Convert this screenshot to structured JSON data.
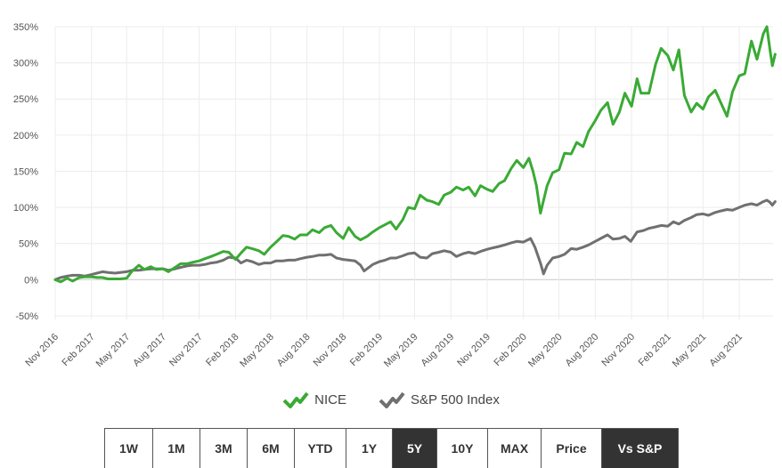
{
  "chart_data": {
    "type": "line",
    "ylim": [
      -55,
      350
    ],
    "y_ticks": [
      {
        "value": 350,
        "label": "350%"
      },
      {
        "value": 300,
        "label": "300%"
      },
      {
        "value": 250,
        "label": "250%"
      },
      {
        "value": 200,
        "label": "200%"
      },
      {
        "value": 150,
        "label": "150%"
      },
      {
        "value": 100,
        "label": "100%"
      },
      {
        "value": 50,
        "label": "50%"
      },
      {
        "value": 0,
        "label": "0%"
      },
      {
        "value": -50,
        "label": "-50%"
      }
    ],
    "x_range": [
      "2016-11-01",
      "2021-10-31"
    ],
    "x_ticks": [
      {
        "date": "2016-11-01",
        "label": "Nov 2016"
      },
      {
        "date": "2017-02-01",
        "label": "Feb 2017"
      },
      {
        "date": "2017-05-01",
        "label": "May 2017"
      },
      {
        "date": "2017-08-01",
        "label": "Aug 2017"
      },
      {
        "date": "2017-11-01",
        "label": "Nov 2017"
      },
      {
        "date": "2018-02-01",
        "label": "Feb 2018"
      },
      {
        "date": "2018-05-01",
        "label": "May 2018"
      },
      {
        "date": "2018-08-01",
        "label": "Aug 2018"
      },
      {
        "date": "2018-11-01",
        "label": "Nov 2018"
      },
      {
        "date": "2019-02-01",
        "label": "Feb 2019"
      },
      {
        "date": "2019-05-01",
        "label": "May 2019"
      },
      {
        "date": "2019-08-01",
        "label": "Aug 2019"
      },
      {
        "date": "2019-11-01",
        "label": "Nov 2019"
      },
      {
        "date": "2020-02-01",
        "label": "Feb 2020"
      },
      {
        "date": "2020-05-01",
        "label": "May 2020"
      },
      {
        "date": "2020-08-01",
        "label": "Aug 2020"
      },
      {
        "date": "2020-11-01",
        "label": "Nov 2020"
      },
      {
        "date": "2021-02-01",
        "label": "Feb 2021"
      },
      {
        "date": "2021-05-01",
        "label": "May 2021"
      },
      {
        "date": "2021-08-01",
        "label": "Aug 2021"
      }
    ],
    "grid": true,
    "legend_position": "bottom-center",
    "series": [
      {
        "name": "NICE",
        "color": "#3aaa35",
        "points": [
          [
            "2016-11-01",
            0
          ],
          [
            "2016-11-15",
            -3
          ],
          [
            "2016-12-01",
            2
          ],
          [
            "2016-12-15",
            -2
          ],
          [
            "2017-01-01",
            3
          ],
          [
            "2017-01-15",
            4
          ],
          [
            "2017-02-01",
            4
          ],
          [
            "2017-02-15",
            3
          ],
          [
            "2017-03-01",
            3
          ],
          [
            "2017-03-15",
            1
          ],
          [
            "2017-04-01",
            1
          ],
          [
            "2017-04-15",
            1
          ],
          [
            "2017-05-01",
            2
          ],
          [
            "2017-05-15",
            12
          ],
          [
            "2017-06-01",
            20
          ],
          [
            "2017-06-15",
            14
          ],
          [
            "2017-07-01",
            18
          ],
          [
            "2017-07-15",
            14
          ],
          [
            "2017-08-01",
            15
          ],
          [
            "2017-08-15",
            11
          ],
          [
            "2017-09-01",
            17
          ],
          [
            "2017-09-15",
            22
          ],
          [
            "2017-10-01",
            22
          ],
          [
            "2017-10-15",
            24
          ],
          [
            "2017-11-01",
            26
          ],
          [
            "2017-11-15",
            29
          ],
          [
            "2017-12-01",
            32
          ],
          [
            "2017-12-15",
            35
          ],
          [
            "2018-01-01",
            39
          ],
          [
            "2018-01-15",
            38
          ],
          [
            "2018-02-01",
            28
          ],
          [
            "2018-02-15",
            37
          ],
          [
            "2018-03-01",
            45
          ],
          [
            "2018-03-15",
            43
          ],
          [
            "2018-04-01",
            40
          ],
          [
            "2018-04-15",
            35
          ],
          [
            "2018-05-01",
            45
          ],
          [
            "2018-05-15",
            52
          ],
          [
            "2018-06-01",
            61
          ],
          [
            "2018-06-15",
            60
          ],
          [
            "2018-07-01",
            56
          ],
          [
            "2018-07-15",
            62
          ],
          [
            "2018-08-01",
            62
          ],
          [
            "2018-08-15",
            69
          ],
          [
            "2018-09-01",
            65
          ],
          [
            "2018-09-15",
            72
          ],
          [
            "2018-10-01",
            75
          ],
          [
            "2018-10-15",
            65
          ],
          [
            "2018-11-01",
            57
          ],
          [
            "2018-11-15",
            72
          ],
          [
            "2018-12-01",
            60
          ],
          [
            "2018-12-15",
            55
          ],
          [
            "2019-01-01",
            60
          ],
          [
            "2019-01-15",
            66
          ],
          [
            "2019-02-01",
            72
          ],
          [
            "2019-02-15",
            76
          ],
          [
            "2019-03-01",
            80
          ],
          [
            "2019-03-15",
            70
          ],
          [
            "2019-04-01",
            83
          ],
          [
            "2019-04-15",
            100
          ],
          [
            "2019-05-01",
            98
          ],
          [
            "2019-05-15",
            117
          ],
          [
            "2019-06-01",
            110
          ],
          [
            "2019-06-15",
            108
          ],
          [
            "2019-07-01",
            104
          ],
          [
            "2019-07-15",
            117
          ],
          [
            "2019-08-01",
            121
          ],
          [
            "2019-08-15",
            128
          ],
          [
            "2019-09-01",
            124
          ],
          [
            "2019-09-15",
            128
          ],
          [
            "2019-10-01",
            116
          ],
          [
            "2019-10-15",
            130
          ],
          [
            "2019-11-01",
            125
          ],
          [
            "2019-11-15",
            122
          ],
          [
            "2019-12-01",
            133
          ],
          [
            "2019-12-15",
            137
          ],
          [
            "2020-01-01",
            154
          ],
          [
            "2020-01-15",
            165
          ],
          [
            "2020-02-01",
            155
          ],
          [
            "2020-02-15",
            168
          ],
          [
            "2020-02-25",
            150
          ],
          [
            "2020-03-05",
            130
          ],
          [
            "2020-03-15",
            92
          ],
          [
            "2020-04-01",
            130
          ],
          [
            "2020-04-15",
            148
          ],
          [
            "2020-05-01",
            152
          ],
          [
            "2020-05-15",
            175
          ],
          [
            "2020-06-01",
            174
          ],
          [
            "2020-06-15",
            190
          ],
          [
            "2020-07-01",
            184
          ],
          [
            "2020-07-15",
            205
          ],
          [
            "2020-08-01",
            220
          ],
          [
            "2020-08-15",
            234
          ],
          [
            "2020-09-01",
            245
          ],
          [
            "2020-09-15",
            215
          ],
          [
            "2020-10-01",
            232
          ],
          [
            "2020-10-15",
            258
          ],
          [
            "2020-11-01",
            240
          ],
          [
            "2020-11-15",
            278
          ],
          [
            "2020-11-25",
            258
          ],
          [
            "2020-12-15",
            258
          ],
          [
            "2021-01-01",
            298
          ],
          [
            "2021-01-15",
            320
          ],
          [
            "2021-02-01",
            310
          ],
          [
            "2021-02-15",
            290
          ],
          [
            "2021-03-01",
            318
          ],
          [
            "2021-03-15",
            255
          ],
          [
            "2021-04-01",
            232
          ],
          [
            "2021-04-15",
            244
          ],
          [
            "2021-05-01",
            236
          ],
          [
            "2021-05-15",
            253
          ],
          [
            "2021-06-01",
            262
          ],
          [
            "2021-06-15",
            245
          ],
          [
            "2021-07-01",
            226
          ],
          [
            "2021-07-15",
            260
          ],
          [
            "2021-08-01",
            282
          ],
          [
            "2021-08-15",
            285
          ],
          [
            "2021-09-01",
            330
          ],
          [
            "2021-09-15",
            305
          ],
          [
            "2021-10-01",
            340
          ],
          [
            "2021-10-10",
            350
          ],
          [
            "2021-10-18",
            318
          ],
          [
            "2021-10-24",
            296
          ],
          [
            "2021-10-31",
            312
          ]
        ]
      },
      {
        "name": "S&P 500 Index",
        "color": "#707070",
        "points": [
          [
            "2016-11-01",
            0
          ],
          [
            "2016-11-15",
            3
          ],
          [
            "2016-12-01",
            5
          ],
          [
            "2016-12-15",
            6
          ],
          [
            "2017-01-01",
            6
          ],
          [
            "2017-01-15",
            5
          ],
          [
            "2017-02-01",
            7
          ],
          [
            "2017-02-15",
            9
          ],
          [
            "2017-03-01",
            11
          ],
          [
            "2017-03-15",
            10
          ],
          [
            "2017-04-01",
            9
          ],
          [
            "2017-04-15",
            10
          ],
          [
            "2017-05-01",
            11
          ],
          [
            "2017-05-15",
            13
          ],
          [
            "2017-06-01",
            13
          ],
          [
            "2017-06-15",
            14
          ],
          [
            "2017-07-01",
            15
          ],
          [
            "2017-07-15",
            15
          ],
          [
            "2017-08-01",
            15
          ],
          [
            "2017-08-15",
            13
          ],
          [
            "2017-09-01",
            15
          ],
          [
            "2017-09-15",
            17
          ],
          [
            "2017-10-01",
            19
          ],
          [
            "2017-10-15",
            20
          ],
          [
            "2017-11-01",
            20
          ],
          [
            "2017-11-15",
            21
          ],
          [
            "2017-12-01",
            23
          ],
          [
            "2017-12-15",
            24
          ],
          [
            "2018-01-01",
            27
          ],
          [
            "2018-01-15",
            31
          ],
          [
            "2018-02-01",
            30
          ],
          [
            "2018-02-15",
            23
          ],
          [
            "2018-03-01",
            27
          ],
          [
            "2018-03-15",
            25
          ],
          [
            "2018-04-01",
            21
          ],
          [
            "2018-04-15",
            23
          ],
          [
            "2018-05-01",
            23
          ],
          [
            "2018-05-15",
            26
          ],
          [
            "2018-06-01",
            26
          ],
          [
            "2018-06-15",
            27
          ],
          [
            "2018-07-01",
            27
          ],
          [
            "2018-07-15",
            29
          ],
          [
            "2018-08-01",
            31
          ],
          [
            "2018-08-15",
            32
          ],
          [
            "2018-09-01",
            34
          ],
          [
            "2018-09-15",
            34
          ],
          [
            "2018-10-01",
            35
          ],
          [
            "2018-10-15",
            30
          ],
          [
            "2018-11-01",
            28
          ],
          [
            "2018-11-15",
            27
          ],
          [
            "2018-12-01",
            26
          ],
          [
            "2018-12-15",
            20
          ],
          [
            "2018-12-24",
            12
          ],
          [
            "2019-01-15",
            21
          ],
          [
            "2019-02-01",
            25
          ],
          [
            "2019-02-15",
            27
          ],
          [
            "2019-03-01",
            30
          ],
          [
            "2019-03-15",
            30
          ],
          [
            "2019-04-01",
            33
          ],
          [
            "2019-04-15",
            36
          ],
          [
            "2019-05-01",
            37
          ],
          [
            "2019-05-15",
            31
          ],
          [
            "2019-06-01",
            30
          ],
          [
            "2019-06-15",
            36
          ],
          [
            "2019-07-01",
            38
          ],
          [
            "2019-07-15",
            40
          ],
          [
            "2019-08-01",
            38
          ],
          [
            "2019-08-15",
            32
          ],
          [
            "2019-09-01",
            36
          ],
          [
            "2019-09-15",
            38
          ],
          [
            "2019-10-01",
            36
          ],
          [
            "2019-10-15",
            39
          ],
          [
            "2019-11-01",
            42
          ],
          [
            "2019-11-15",
            44
          ],
          [
            "2019-12-01",
            46
          ],
          [
            "2019-12-15",
            48
          ],
          [
            "2020-01-01",
            51
          ],
          [
            "2020-01-15",
            53
          ],
          [
            "2020-02-01",
            52
          ],
          [
            "2020-02-19",
            57
          ],
          [
            "2020-03-01",
            45
          ],
          [
            "2020-03-15",
            23
          ],
          [
            "2020-03-23",
            8
          ],
          [
            "2020-04-01",
            20
          ],
          [
            "2020-04-15",
            30
          ],
          [
            "2020-05-01",
            32
          ],
          [
            "2020-05-15",
            35
          ],
          [
            "2020-06-01",
            43
          ],
          [
            "2020-06-15",
            42
          ],
          [
            "2020-07-01",
            45
          ],
          [
            "2020-07-15",
            48
          ],
          [
            "2020-08-01",
            53
          ],
          [
            "2020-08-15",
            57
          ],
          [
            "2020-09-01",
            62
          ],
          [
            "2020-09-15",
            56
          ],
          [
            "2020-10-01",
            57
          ],
          [
            "2020-10-15",
            60
          ],
          [
            "2020-10-30",
            53
          ],
          [
            "2020-11-15",
            66
          ],
          [
            "2020-12-01",
            68
          ],
          [
            "2020-12-15",
            71
          ],
          [
            "2021-01-01",
            73
          ],
          [
            "2021-01-15",
            75
          ],
          [
            "2021-02-01",
            74
          ],
          [
            "2021-02-15",
            80
          ],
          [
            "2021-03-01",
            77
          ],
          [
            "2021-03-15",
            82
          ],
          [
            "2021-04-01",
            86
          ],
          [
            "2021-04-15",
            90
          ],
          [
            "2021-05-01",
            91
          ],
          [
            "2021-05-15",
            89
          ],
          [
            "2021-06-01",
            93
          ],
          [
            "2021-06-15",
            95
          ],
          [
            "2021-07-01",
            97
          ],
          [
            "2021-07-15",
            96
          ],
          [
            "2021-08-01",
            100
          ],
          [
            "2021-08-15",
            103
          ],
          [
            "2021-09-01",
            105
          ],
          [
            "2021-09-15",
            103
          ],
          [
            "2021-10-01",
            108
          ],
          [
            "2021-10-10",
            110
          ],
          [
            "2021-10-18",
            107
          ],
          [
            "2021-10-24",
            103
          ],
          [
            "2021-10-31",
            108
          ]
        ]
      }
    ]
  },
  "legend": {
    "items": [
      {
        "label": "NICE",
        "color": "#3aaa35"
      },
      {
        "label": "S&P 500 Index",
        "color": "#707070"
      }
    ]
  },
  "range_buttons": [
    {
      "label": "1W",
      "active": false
    },
    {
      "label": "1M",
      "active": false
    },
    {
      "label": "3M",
      "active": false
    },
    {
      "label": "6M",
      "active": false
    },
    {
      "label": "YTD",
      "active": false
    },
    {
      "label": "1Y",
      "active": false
    },
    {
      "label": "5Y",
      "active": true
    },
    {
      "label": "10Y",
      "active": false
    },
    {
      "label": "MAX",
      "active": false
    },
    {
      "label": "Price",
      "active": false
    },
    {
      "label": "Vs S&P",
      "active": true
    }
  ]
}
